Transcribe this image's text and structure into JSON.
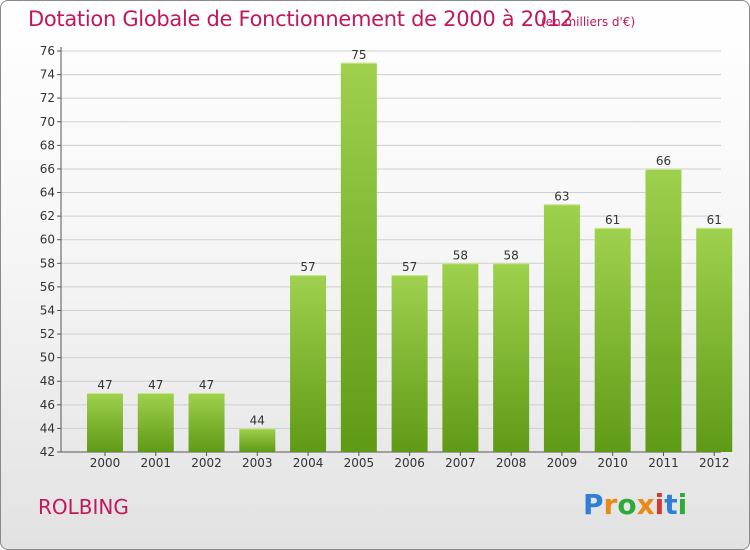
{
  "title": "Dotation Globale de Fonctionnement de 2000 à 2012",
  "unit_note": "(en milliers d'€)",
  "commune": "ROLBING",
  "logo": {
    "text": "Proxiti"
  },
  "colors": {
    "title": "#c2185b",
    "bar_light": "#9fd14e",
    "bar_dark": "#5f9a16",
    "grid": "#cfcfcf"
  },
  "chart_data": {
    "type": "bar",
    "title": "Dotation Globale de Fonctionnement de 2000 à 2012",
    "xlabel": "",
    "ylabel": "",
    "ylim": [
      42,
      76
    ],
    "yticks": [
      42,
      44,
      46,
      48,
      50,
      52,
      54,
      56,
      58,
      60,
      62,
      64,
      66,
      68,
      70,
      72,
      74,
      76
    ],
    "grid": true,
    "categories": [
      "2000",
      "2001",
      "2002",
      "2003",
      "2004",
      "2005",
      "2006",
      "2007",
      "2008",
      "2009",
      "2010",
      "2011",
      "2012"
    ],
    "values": [
      47,
      47,
      47,
      44,
      57,
      75,
      57,
      58,
      58,
      63,
      61,
      66,
      61
    ]
  }
}
